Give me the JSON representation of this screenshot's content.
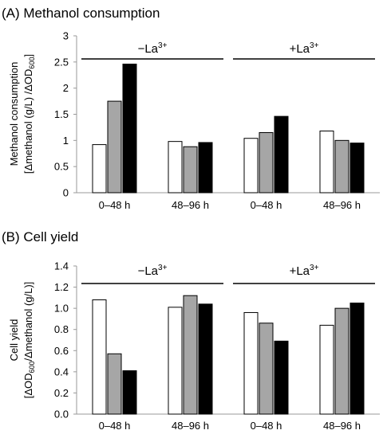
{
  "chart_data": [
    {
      "type": "bar",
      "title": "(A) Methanol consumption",
      "ylabel_line1": "Methanol consumption",
      "ylabel_line2": "[Δmethanol (g/L) /ΔOD",
      "ylabel_line2_sub": "600",
      "ylabel_line2_end": "]",
      "ylim": [
        0,
        3
      ],
      "yticks": [
        "0",
        "0.5",
        "1",
        "1.5",
        "2",
        "2.5",
        "3"
      ],
      "categories": [
        "0–48 h",
        "48–96 h",
        "0–48 h",
        "48–96 h"
      ],
      "groups": [
        {
          "label": "−La",
          "sup": "3+",
          "span": [
            0,
            1
          ]
        },
        {
          "label": "+La",
          "sup": "3+",
          "span": [
            2,
            3
          ]
        }
      ],
      "series": [
        {
          "color": "#ffffff",
          "values": [
            0.92,
            0.98,
            1.04,
            1.18
          ]
        },
        {
          "color": "#a6a6a6",
          "values": [
            1.75,
            0.88,
            1.15,
            1.0
          ]
        },
        {
          "color": "#000000",
          "values": [
            2.46,
            0.96,
            1.46,
            0.95
          ]
        }
      ]
    },
    {
      "type": "bar",
      "title": "(B) Cell yield",
      "ylabel_line1": "Cell yield",
      "ylabel_line2": "[ΔOD",
      "ylabel_line2_sub": "600",
      "ylabel_line2_end": "/Δmethanol (g/L)]",
      "ylim": [
        0,
        1.4
      ],
      "yticks": [
        "0.0",
        "0.2",
        "0.4",
        "0.6",
        "0.8",
        "1.0",
        "1.2",
        "1.4"
      ],
      "categories": [
        "0–48 h",
        "48–96 h",
        "0–48 h",
        "48–96 h"
      ],
      "groups": [
        {
          "label": "−La",
          "sup": "3+",
          "span": [
            0,
            1
          ]
        },
        {
          "label": "+La",
          "sup": "3+",
          "span": [
            2,
            3
          ]
        }
      ],
      "series": [
        {
          "color": "#ffffff",
          "values": [
            1.08,
            1.01,
            0.96,
            0.84
          ]
        },
        {
          "color": "#a6a6a6",
          "values": [
            0.57,
            1.12,
            0.86,
            1.0
          ]
        },
        {
          "color": "#000000",
          "values": [
            0.41,
            1.04,
            0.69,
            1.05
          ]
        }
      ]
    }
  ]
}
